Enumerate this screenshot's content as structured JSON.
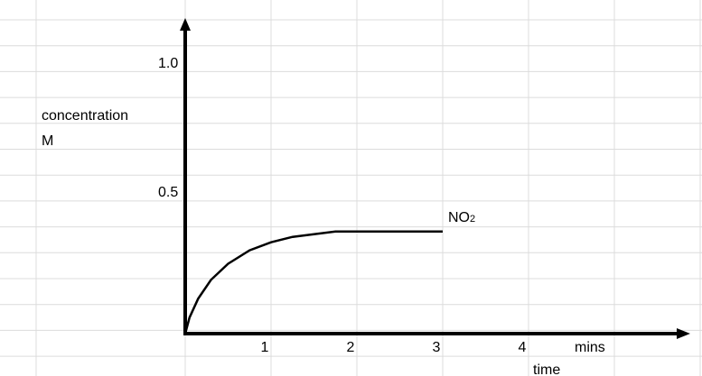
{
  "chart_data": {
    "type": "line",
    "ylabel_line1": "concentration",
    "ylabel_line2": "M",
    "xlabel": "time",
    "x_unit": "mins",
    "x_ticks": [
      "1",
      "2",
      "3",
      "4"
    ],
    "y_ticks": [
      "0.5",
      "1.0"
    ],
    "xlim": [
      0,
      5.9
    ],
    "ylim": [
      0,
      1.1
    ],
    "grid": "spreadsheet cells",
    "series": [
      {
        "label_main": "NO",
        "label_sub": "2",
        "x": [
          0,
          0.05,
          0.15,
          0.3,
          0.5,
          0.75,
          1.0,
          1.25,
          1.5,
          1.75,
          2.0,
          2.5,
          3.0
        ],
        "y": [
          0.0,
          0.06,
          0.13,
          0.2,
          0.26,
          0.31,
          0.34,
          0.36,
          0.37,
          0.38,
          0.38,
          0.38,
          0.38
        ]
      }
    ]
  }
}
